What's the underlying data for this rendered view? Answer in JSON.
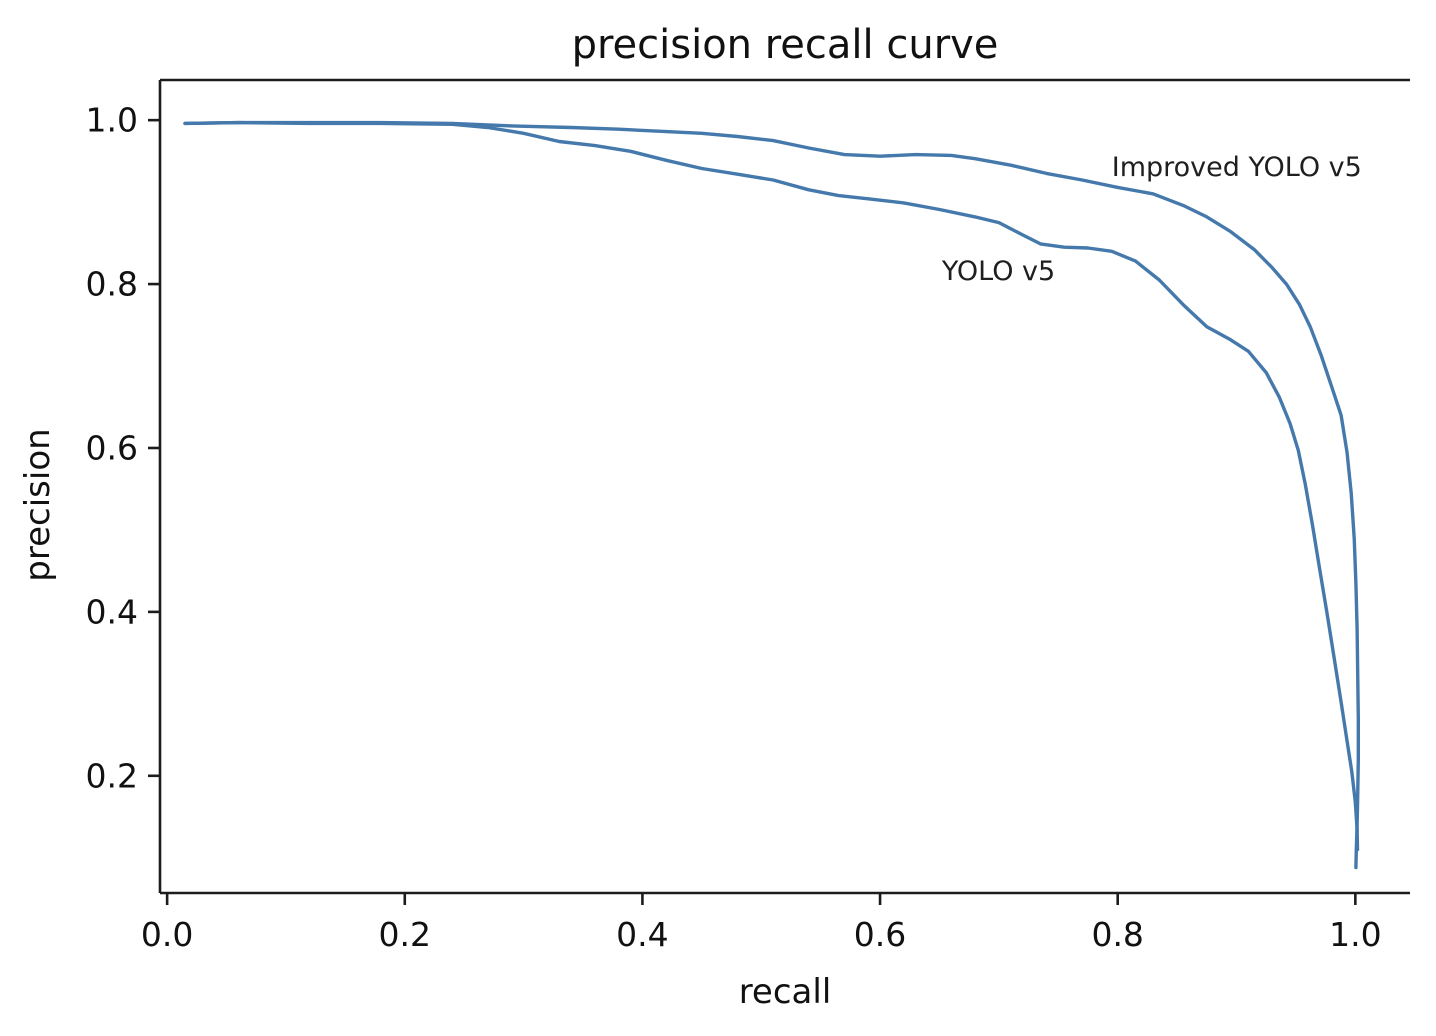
{
  "chart_data": {
    "type": "line",
    "title": "precision recall curve",
    "xlabel": "recall",
    "ylabel": "precision",
    "xlim": [
      -0.006,
      1.046
    ],
    "ylim": [
      0.057,
      1.049
    ],
    "xticks": [
      0.0,
      0.2,
      0.4,
      0.6,
      0.8,
      1.0
    ],
    "yticks": [
      0.2,
      0.4,
      0.6,
      0.8,
      1.0
    ],
    "grid": false,
    "legend_position": "inline-annotations",
    "line_color": "#4579ac",
    "axis_color": "#1c1c1c",
    "spines": {
      "left": true,
      "bottom": true,
      "top": true,
      "right": false
    },
    "annotations": [
      {
        "text": "Improved YOLO v5",
        "x": 0.795,
        "y": 0.961,
        "anchor": "top-left"
      },
      {
        "text": "YOLO v5",
        "x": 0.652,
        "y": 0.834,
        "anchor": "top-left"
      }
    ],
    "series": [
      {
        "name": "Improved YOLO v5",
        "points": [
          [
            0.015,
            0.996
          ],
          [
            0.06,
            0.997
          ],
          [
            0.12,
            0.997
          ],
          [
            0.18,
            0.997
          ],
          [
            0.24,
            0.996
          ],
          [
            0.29,
            0.993
          ],
          [
            0.34,
            0.991
          ],
          [
            0.38,
            0.989
          ],
          [
            0.42,
            0.986
          ],
          [
            0.45,
            0.984
          ],
          [
            0.48,
            0.98
          ],
          [
            0.51,
            0.975
          ],
          [
            0.54,
            0.966
          ],
          [
            0.57,
            0.958
          ],
          [
            0.6,
            0.956
          ],
          [
            0.63,
            0.958
          ],
          [
            0.66,
            0.957
          ],
          [
            0.68,
            0.953
          ],
          [
            0.71,
            0.945
          ],
          [
            0.74,
            0.935
          ],
          [
            0.77,
            0.927
          ],
          [
            0.8,
            0.918
          ],
          [
            0.83,
            0.91
          ],
          [
            0.855,
            0.896
          ],
          [
            0.875,
            0.882
          ],
          [
            0.895,
            0.864
          ],
          [
            0.915,
            0.842
          ],
          [
            0.93,
            0.82
          ],
          [
            0.942,
            0.8
          ],
          [
            0.953,
            0.775
          ],
          [
            0.962,
            0.748
          ],
          [
            0.971,
            0.714
          ],
          [
            0.98,
            0.675
          ],
          [
            0.988,
            0.64
          ],
          [
            0.993,
            0.595
          ],
          [
            0.9965,
            0.545
          ],
          [
            0.999,
            0.49
          ],
          [
            1.0005,
            0.435
          ],
          [
            1.0015,
            0.38
          ],
          [
            1.002,
            0.325
          ],
          [
            1.0025,
            0.27
          ],
          [
            1.0025,
            0.22
          ],
          [
            1.002,
            0.175
          ],
          [
            1.0015,
            0.14
          ],
          [
            1.0008,
            0.11
          ],
          [
            1.0005,
            0.088
          ]
        ]
      },
      {
        "name": "YOLO v5",
        "points": [
          [
            0.015,
            0.996
          ],
          [
            0.06,
            0.997
          ],
          [
            0.12,
            0.996
          ],
          [
            0.18,
            0.996
          ],
          [
            0.24,
            0.995
          ],
          [
            0.27,
            0.991
          ],
          [
            0.3,
            0.984
          ],
          [
            0.33,
            0.974
          ],
          [
            0.36,
            0.969
          ],
          [
            0.39,
            0.962
          ],
          [
            0.42,
            0.951
          ],
          [
            0.45,
            0.941
          ],
          [
            0.48,
            0.934
          ],
          [
            0.51,
            0.927
          ],
          [
            0.54,
            0.915
          ],
          [
            0.565,
            0.908
          ],
          [
            0.59,
            0.904
          ],
          [
            0.62,
            0.899
          ],
          [
            0.65,
            0.891
          ],
          [
            0.68,
            0.882
          ],
          [
            0.7,
            0.875
          ],
          [
            0.72,
            0.86
          ],
          [
            0.735,
            0.849
          ],
          [
            0.755,
            0.845
          ],
          [
            0.775,
            0.844
          ],
          [
            0.795,
            0.84
          ],
          [
            0.815,
            0.828
          ],
          [
            0.835,
            0.805
          ],
          [
            0.855,
            0.775
          ],
          [
            0.875,
            0.748
          ],
          [
            0.895,
            0.732
          ],
          [
            0.91,
            0.718
          ],
          [
            0.925,
            0.692
          ],
          [
            0.936,
            0.662
          ],
          [
            0.945,
            0.63
          ],
          [
            0.952,
            0.597
          ],
          [
            0.958,
            0.555
          ],
          [
            0.964,
            0.505
          ],
          [
            0.97,
            0.452
          ],
          [
            0.976,
            0.4
          ],
          [
            0.982,
            0.345
          ],
          [
            0.988,
            0.29
          ],
          [
            0.993,
            0.243
          ],
          [
            0.997,
            0.205
          ],
          [
            1.0,
            0.168
          ],
          [
            1.0015,
            0.135
          ],
          [
            1.0018,
            0.11
          ]
        ]
      }
    ]
  }
}
